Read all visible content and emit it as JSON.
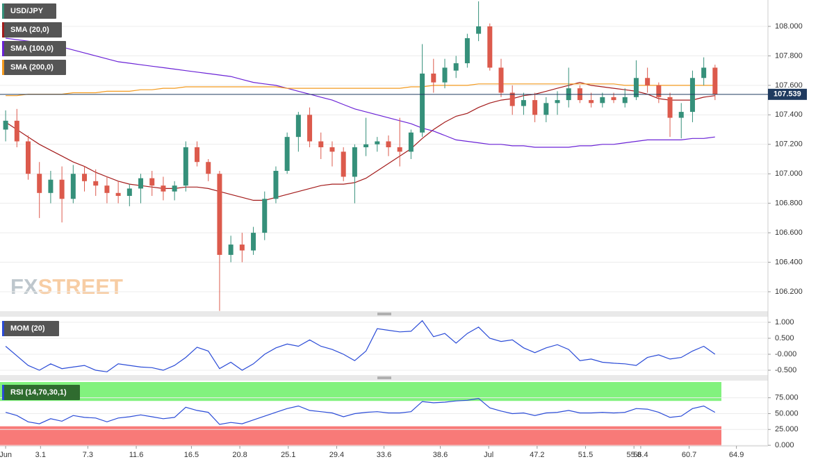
{
  "watermark": [
    "FX",
    "STREET"
  ],
  "chart_data": [
    {
      "type": "candlestick",
      "name": "USD/JPY",
      "up_color": "#35907a",
      "down_color": "#dc5a4c",
      "current": 107.539,
      "current_color": "#1f3a5f",
      "xlim": [
        -0.5,
        67.7
      ],
      "ylim": [
        106.068,
        108.179
      ],
      "grid": true,
      "yticks": [
        {
          "value": 106.2,
          "label": "106.200"
        },
        {
          "value": 106.4,
          "label": "106.400"
        },
        {
          "value": 106.6,
          "label": "106.600"
        },
        {
          "value": 106.8,
          "label": "106.800"
        },
        {
          "value": 107.0,
          "label": "107.000"
        },
        {
          "value": 107.2,
          "label": "107.200"
        },
        {
          "value": 107.4,
          "label": "107.400"
        },
        {
          "value": 107.6,
          "label": "107.600"
        },
        {
          "value": 107.8,
          "label": "107.800"
        },
        {
          "value": 108.0,
          "label": "108.000"
        }
      ],
      "open": [
        107.3,
        107.36,
        107.22,
        107.0,
        106.87,
        106.96,
        106.83,
        107.0,
        106.95,
        106.92,
        106.87,
        106.85,
        106.9,
        106.97,
        106.92,
        106.88,
        106.92,
        107.18,
        107.08,
        107.0,
        106.45,
        106.52,
        106.48,
        106.6,
        106.83,
        107.02,
        107.25,
        107.4,
        107.22,
        107.18,
        107.15,
        106.98,
        107.18,
        107.2,
        107.22,
        107.18,
        107.15,
        107.28,
        107.68,
        107.62,
        107.7,
        107.75,
        107.95,
        108.0,
        107.72,
        107.55,
        107.46,
        107.5,
        107.4,
        107.48,
        107.5,
        107.58,
        107.5,
        107.48,
        107.52,
        107.48,
        107.52,
        107.65,
        107.6,
        107.52,
        107.38,
        107.42,
        107.65,
        107.72
      ],
      "high": [
        107.43,
        107.44,
        107.26,
        107.08,
        107.02,
        107.05,
        107.06,
        107.05,
        107.03,
        106.98,
        106.95,
        106.93,
        107.0,
        107.02,
        106.98,
        106.95,
        107.22,
        107.22,
        107.1,
        107.02,
        106.58,
        106.6,
        106.64,
        106.88,
        107.05,
        107.28,
        107.42,
        107.45,
        107.28,
        107.22,
        107.18,
        107.2,
        107.38,
        107.25,
        107.26,
        107.38,
        107.3,
        107.88,
        107.78,
        107.78,
        107.8,
        107.95,
        108.17,
        108.02,
        107.78,
        107.6,
        107.55,
        107.55,
        107.52,
        107.56,
        107.72,
        107.6,
        107.55,
        107.55,
        107.55,
        107.58,
        107.77,
        107.72,
        107.62,
        107.55,
        107.48,
        107.7,
        107.79,
        107.74
      ],
      "low": [
        107.22,
        107.18,
        106.96,
        106.7,
        106.8,
        106.67,
        106.8,
        106.88,
        106.85,
        106.8,
        106.8,
        106.78,
        106.8,
        106.85,
        106.82,
        106.82,
        106.88,
        107.05,
        106.95,
        106.07,
        106.4,
        106.4,
        106.45,
        106.55,
        106.8,
        107.0,
        107.15,
        107.18,
        107.1,
        107.05,
        106.95,
        106.8,
        107.12,
        107.15,
        107.12,
        107.05,
        107.1,
        107.25,
        107.55,
        107.58,
        107.65,
        107.72,
        107.9,
        107.7,
        107.52,
        107.4,
        107.4,
        107.35,
        107.35,
        107.4,
        107.45,
        107.48,
        107.45,
        107.45,
        107.48,
        107.45,
        107.5,
        107.55,
        107.48,
        107.25,
        107.24,
        107.35,
        107.6,
        107.5
      ],
      "close": [
        107.36,
        107.22,
        107.0,
        106.87,
        106.96,
        106.83,
        107.0,
        106.95,
        106.92,
        106.87,
        106.85,
        106.9,
        106.97,
        106.92,
        106.88,
        106.92,
        107.18,
        107.08,
        107.0,
        106.45,
        106.52,
        106.48,
        106.6,
        106.83,
        107.02,
        107.25,
        107.4,
        107.22,
        107.18,
        107.15,
        106.98,
        107.18,
        107.2,
        107.22,
        107.18,
        107.15,
        107.28,
        107.68,
        107.62,
        107.72,
        107.75,
        107.92,
        108.0,
        107.72,
        107.55,
        107.46,
        107.5,
        107.4,
        107.48,
        107.5,
        107.58,
        107.5,
        107.48,
        107.52,
        107.5,
        107.52,
        107.65,
        107.6,
        107.52,
        107.38,
        107.42,
        107.65,
        107.72,
        107.54
      ],
      "series": [
        {
          "name": "SMA (20,0)",
          "color": "#a31a1a",
          "values": [
            107.35,
            107.3,
            107.25,
            107.2,
            107.16,
            107.12,
            107.08,
            107.05,
            107.01,
            106.98,
            106.95,
            106.93,
            106.92,
            106.91,
            106.9,
            106.9,
            106.91,
            106.91,
            106.9,
            106.88,
            106.86,
            106.84,
            106.82,
            106.82,
            106.84,
            106.86,
            106.88,
            106.9,
            106.92,
            106.93,
            106.93,
            106.94,
            106.97,
            107.02,
            107.07,
            107.12,
            107.17,
            107.24,
            107.3,
            107.35,
            107.39,
            107.41,
            107.45,
            107.48,
            107.5,
            107.51,
            107.53,
            107.54,
            107.56,
            107.58,
            107.6,
            107.62,
            107.6,
            107.59,
            107.58,
            107.57,
            107.56,
            107.54,
            107.51,
            107.5,
            107.5,
            107.5,
            107.52,
            107.53
          ]
        },
        {
          "name": "SMA (100,0)",
          "color": "#6a22d6",
          "values": [
            107.92,
            107.91,
            107.9,
            107.89,
            107.88,
            107.86,
            107.84,
            107.82,
            107.8,
            107.78,
            107.76,
            107.75,
            107.74,
            107.73,
            107.72,
            107.71,
            107.7,
            107.69,
            107.68,
            107.67,
            107.66,
            107.64,
            107.62,
            107.61,
            107.6,
            107.58,
            107.56,
            107.54,
            107.52,
            107.5,
            107.47,
            107.44,
            107.42,
            107.4,
            107.38,
            107.36,
            107.34,
            107.31,
            107.29,
            107.26,
            107.23,
            107.22,
            107.21,
            107.2,
            107.2,
            107.19,
            107.19,
            107.18,
            107.18,
            107.18,
            107.18,
            107.19,
            107.19,
            107.2,
            107.2,
            107.21,
            107.22,
            107.23,
            107.23,
            107.23,
            107.23,
            107.24,
            107.24,
            107.25
          ]
        },
        {
          "name": "SMA (200,0)",
          "color": "#f39a1e",
          "values": [
            107.53,
            107.53,
            107.54,
            107.54,
            107.54,
            107.54,
            107.55,
            107.55,
            107.55,
            107.56,
            107.56,
            107.56,
            107.57,
            107.57,
            107.58,
            107.58,
            107.59,
            107.59,
            107.59,
            107.59,
            107.59,
            107.59,
            107.59,
            107.59,
            107.59,
            107.58,
            107.58,
            107.58,
            107.58,
            107.58,
            107.58,
            107.58,
            107.58,
            107.58,
            107.58,
            107.58,
            107.59,
            107.59,
            107.6,
            107.6,
            107.6,
            107.6,
            107.61,
            107.61,
            107.61,
            107.61,
            107.61,
            107.61,
            107.61,
            107.61,
            107.61,
            107.61,
            107.61,
            107.61,
            107.61,
            107.6,
            107.6,
            107.6,
            107.6,
            107.6,
            107.6,
            107.6,
            107.6,
            107.6
          ]
        }
      ]
    },
    {
      "type": "line",
      "name": "MOM (20)",
      "color": "#2a4bd7",
      "xlim": [
        -0.5,
        67.7
      ],
      "ylim": [
        -0.652,
        1.174
      ],
      "grid": true,
      "yticks": [
        {
          "value": 1,
          "label": "1.000"
        },
        {
          "value": 0.5,
          "label": "0.500"
        },
        {
          "value": 0,
          "label": "-0.000"
        },
        {
          "value": -0.5,
          "label": "-0.500"
        }
      ],
      "values": [
        0.25,
        -0.05,
        -0.35,
        -0.5,
        -0.3,
        -0.45,
        -0.4,
        -0.35,
        -0.5,
        -0.55,
        -0.3,
        -0.35,
        -0.4,
        -0.42,
        -0.5,
        -0.35,
        -0.1,
        0.22,
        0.1,
        -0.45,
        -0.25,
        -0.5,
        -0.3,
        0.0,
        0.2,
        0.32,
        0.25,
        0.45,
        0.25,
        0.15,
        0.0,
        -0.2,
        0.1,
        0.8,
        0.75,
        0.7,
        0.72,
        1.05,
        0.55,
        0.65,
        0.35,
        0.65,
        0.85,
        0.5,
        0.4,
        0.45,
        0.2,
        0.05,
        0.2,
        0.3,
        0.15,
        -0.2,
        -0.15,
        -0.25,
        -0.28,
        -0.3,
        -0.35,
        -0.1,
        -0.02,
        -0.15,
        -0.1,
        0.1,
        0.25,
        0
      ]
    },
    {
      "type": "line",
      "name": "RSI (14,70,30,1)",
      "color": "#2a4bd7",
      "xlim": [
        -0.5,
        67.7
      ],
      "ylim": [
        -1,
        102
      ],
      "grid": true,
      "overbought": 70,
      "oversold": 30,
      "overbought_color": "#82f27e",
      "oversold_color": "#f87a78",
      "yticks": [
        {
          "value": 75,
          "label": "75.000"
        },
        {
          "value": 50,
          "label": "50.000"
        },
        {
          "value": 25,
          "label": "25.000"
        },
        {
          "value": 0,
          "label": "0.000"
        }
      ],
      "xticks": [
        {
          "value": 0,
          "label": "Jun"
        },
        3.1,
        7.3,
        11.6,
        16.5,
        20.8,
        25.1,
        29.4,
        33.6,
        38.6,
        {
          "value": 42.9,
          "label": "Jul"
        },
        47.2,
        51.5,
        55.8,
        56.4,
        60.7,
        64.9
      ],
      "values": [
        52,
        47,
        37,
        34,
        42,
        38,
        47,
        44,
        43,
        37,
        43,
        45,
        48,
        45,
        42,
        44,
        60,
        55,
        52,
        33,
        36,
        34,
        40,
        46,
        52,
        58,
        62,
        55,
        53,
        51,
        45,
        50,
        52,
        53,
        51,
        51,
        53,
        69,
        67,
        68,
        70,
        71,
        74,
        59,
        54,
        50,
        51,
        47,
        51,
        52,
        55,
        51,
        51,
        52,
        51,
        52,
        58,
        57,
        52,
        44,
        46,
        58,
        62,
        52
      ]
    }
  ]
}
